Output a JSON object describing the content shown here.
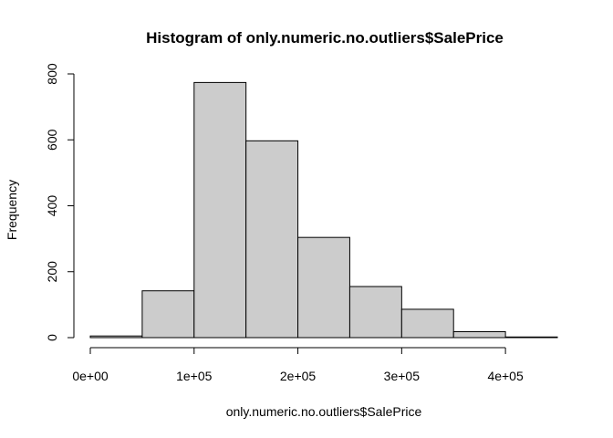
{
  "chart_data": {
    "type": "bar",
    "title": "Histogram of only.numeric.no.outliers$SalePrice",
    "xlabel": "only.numeric.no.outliers$SalePrice",
    "ylabel": "Frequency",
    "bin_edges": [
      0,
      50000,
      100000,
      150000,
      200000,
      250000,
      300000,
      350000,
      400000,
      450000
    ],
    "values": [
      5,
      142,
      774,
      597,
      304,
      155,
      86,
      18,
      2
    ],
    "xlim": [
      0,
      450000
    ],
    "ylim": [
      0,
      800
    ],
    "x_ticks": [
      {
        "value": 0,
        "label": "0e+00"
      },
      {
        "value": 100000,
        "label": "1e+05"
      },
      {
        "value": 200000,
        "label": "2e+05"
      },
      {
        "value": 300000,
        "label": "3e+05"
      },
      {
        "value": 400000,
        "label": "4e+05"
      }
    ],
    "y_ticks": [
      {
        "value": 0,
        "label": "0"
      },
      {
        "value": 200,
        "label": "200"
      },
      {
        "value": 400,
        "label": "400"
      },
      {
        "value": 600,
        "label": "600"
      },
      {
        "value": 800,
        "label": "800"
      }
    ],
    "bar_color": "#cccccc",
    "grid": false,
    "legend": "none"
  }
}
